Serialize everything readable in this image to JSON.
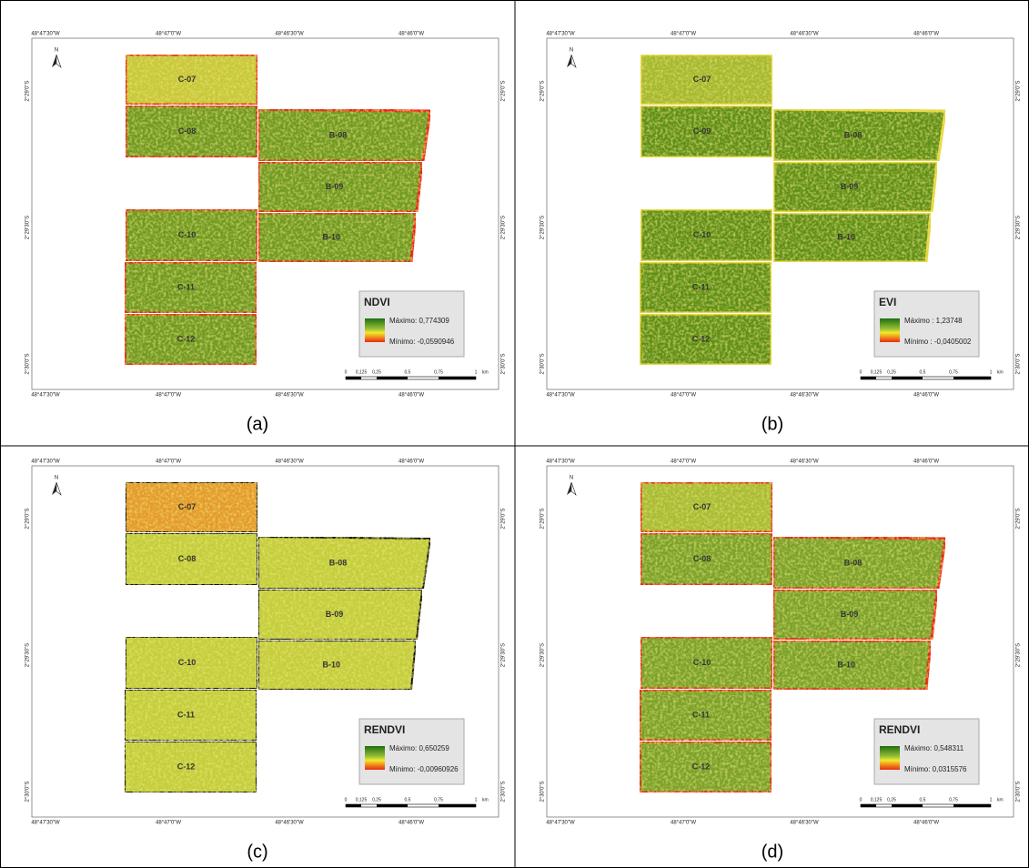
{
  "north": "N",
  "longitude": [
    "48°47'30\"W",
    "48°47'0\"W",
    "48°46'30\"W",
    "48°46'0\"W"
  ],
  "latitude": [
    "2°29'0\"S",
    "2°29'30\"S",
    "2°30'0\"S"
  ],
  "scale_bar": {
    "ticks": [
      "0",
      "0,125",
      "0,25",
      "0,5",
      "0,75",
      "1"
    ],
    "unit": "km"
  },
  "panels": [
    {
      "fields": [
        "C-07",
        "C-08",
        "B-08",
        "B-09",
        "C-10",
        "B-10",
        "C-11",
        "C-12"
      ],
      "legend": {
        "title": "NDVI",
        "max": "Máximo: 0,774309",
        "min": "Mínimo: -0,0590946"
      },
      "caption": "(a)"
    },
    {
      "fields": [
        "C-07",
        "C-09",
        "B-08",
        "B-09",
        "C-10",
        "B-10",
        "C-11",
        "C-12"
      ],
      "legend": {
        "title": "EVI",
        "max": "Máximo : 1,23748",
        "min": "Mínimo : -0,0405002"
      },
      "caption": "(b)"
    },
    {
      "fields": [
        "C-07",
        "C-08",
        "B-08",
        "B-09",
        "C-10",
        "B-10",
        "C-11",
        "C-12"
      ],
      "legend": {
        "title": "RENDVI",
        "max": "Máximo: 0,650259",
        "min": "Mínimo: -0,00960926"
      },
      "caption": "(c)"
    },
    {
      "fields": [
        "C-07",
        "C-08",
        "B-08",
        "B-09",
        "C-10",
        "B-10",
        "C-11",
        "C-12"
      ],
      "legend": {
        "title": "RENDVI",
        "max": "Máximo: 0,548311",
        "min": "Mínimo: 0,0315576"
      },
      "caption": "(d)"
    }
  ]
}
